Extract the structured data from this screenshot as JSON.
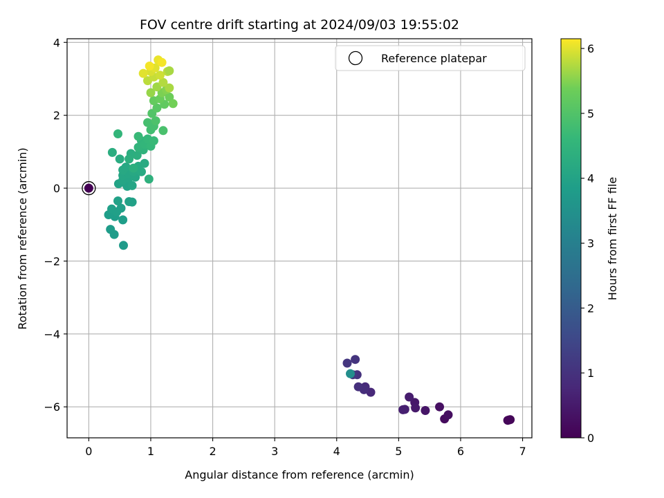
{
  "chart_data": {
    "type": "scatter",
    "title": "FOV centre drift starting at 2024/09/03 19:55:02",
    "xlabel": "Angular distance from reference (arcmin)",
    "ylabel": "Rotation from reference (arcmin)",
    "xlim": [
      -0.35,
      7.15
    ],
    "ylim": [
      -6.85,
      4.1
    ],
    "xticks": [
      0,
      1,
      2,
      3,
      4,
      5,
      6,
      7
    ],
    "yticks": [
      -6,
      -4,
      -2,
      0,
      2,
      4
    ],
    "xtick_labels": [
      "0",
      "1",
      "2",
      "3",
      "4",
      "5",
      "6",
      "7"
    ],
    "ytick_labels": [
      "−6",
      "−4",
      "−2",
      "0",
      "2",
      "4"
    ],
    "grid": true,
    "legend": {
      "placement": "top-right",
      "entries": [
        "Reference platepar"
      ]
    },
    "colorbar": {
      "label": "Hours from first FF file",
      "range": [
        0,
        6.15
      ],
      "colormap": "viridis",
      "ticks": [
        0,
        1,
        2,
        3,
        4,
        5,
        6
      ],
      "tick_labels": [
        "0",
        "1",
        "2",
        "3",
        "4",
        "5",
        "6"
      ]
    },
    "reference_point": {
      "x": 0,
      "y": 0,
      "hours": 0
    },
    "points": [
      [
        6.8,
        -6.35,
        0.05
      ],
      [
        6.76,
        -6.37,
        0.08
      ],
      [
        6.78,
        -6.36,
        0.1
      ],
      [
        5.74,
        -6.33,
        0.2
      ],
      [
        5.8,
        -6.22,
        0.25
      ],
      [
        5.66,
        -6.0,
        0.3
      ],
      [
        5.43,
        -6.1,
        0.4
      ],
      [
        5.26,
        -5.88,
        0.45
      ],
      [
        5.27,
        -6.03,
        0.5
      ],
      [
        5.17,
        -5.73,
        0.55
      ],
      [
        5.1,
        -6.07,
        0.6
      ],
      [
        5.07,
        -6.08,
        0.62
      ],
      [
        4.55,
        -5.6,
        0.8
      ],
      [
        4.46,
        -5.45,
        0.85
      ],
      [
        4.44,
        -5.53,
        0.9
      ],
      [
        4.35,
        -5.45,
        0.95
      ],
      [
        4.33,
        -5.12,
        1.0
      ],
      [
        4.3,
        -4.7,
        1.05
      ],
      [
        4.17,
        -4.8,
        1.1
      ],
      [
        4.26,
        -5.12,
        1.15
      ],
      [
        4.22,
        -5.09,
        3.4
      ],
      [
        0.56,
        -1.57,
        3.75
      ],
      [
        0.41,
        -1.27,
        3.8
      ],
      [
        0.35,
        -1.13,
        3.8
      ],
      [
        0.55,
        -0.87,
        3.85
      ],
      [
        0.42,
        -0.78,
        3.85
      ],
      [
        0.32,
        -0.73,
        3.85
      ],
      [
        0.52,
        -0.55,
        3.9
      ],
      [
        0.37,
        -0.57,
        3.9
      ],
      [
        0.45,
        -0.65,
        3.9
      ],
      [
        0.47,
        -0.35,
        3.95
      ],
      [
        0.65,
        -0.37,
        3.95
      ],
      [
        0.7,
        -0.38,
        3.95
      ],
      [
        0.48,
        0.12,
        4.0
      ],
      [
        0.6,
        0.12,
        4.0
      ],
      [
        0.62,
        0.05,
        4.0
      ],
      [
        0.7,
        0.07,
        4.05
      ],
      [
        0.55,
        0.22,
        4.05
      ],
      [
        0.65,
        0.28,
        4.05
      ],
      [
        0.75,
        0.3,
        4.1
      ],
      [
        0.55,
        0.35,
        4.1
      ],
      [
        0.65,
        0.4,
        4.1
      ],
      [
        0.72,
        0.45,
        4.15
      ],
      [
        0.55,
        0.5,
        4.15
      ],
      [
        0.6,
        0.58,
        4.15
      ],
      [
        0.85,
        0.45,
        4.2
      ],
      [
        0.8,
        0.6,
        4.2
      ],
      [
        0.9,
        0.68,
        4.2
      ],
      [
        0.5,
        0.8,
        4.25
      ],
      [
        0.38,
        0.98,
        4.3
      ],
      [
        0.68,
        0.95,
        4.3
      ],
      [
        0.78,
        0.9,
        4.35
      ],
      [
        0.65,
        0.8,
        4.35
      ],
      [
        0.72,
        0.55,
        4.35
      ],
      [
        0.97,
        0.25,
        4.4
      ],
      [
        0.88,
        1.05,
        4.45
      ],
      [
        0.8,
        1.12,
        4.5
      ],
      [
        0.85,
        1.3,
        4.5
      ],
      [
        0.9,
        1.2,
        4.55
      ],
      [
        1.0,
        1.15,
        4.6
      ],
      [
        0.95,
        1.35,
        4.6
      ],
      [
        1.05,
        1.3,
        4.65
      ],
      [
        0.8,
        1.42,
        4.65
      ],
      [
        0.47,
        1.49,
        4.55
      ],
      [
        1.0,
        1.6,
        4.8
      ],
      [
        1.05,
        1.7,
        4.85
      ],
      [
        0.95,
        1.8,
        4.85
      ],
      [
        1.2,
        1.58,
        4.9
      ],
      [
        1.08,
        1.85,
        4.95
      ],
      [
        1.02,
        2.05,
        5.0
      ],
      [
        1.1,
        2.2,
        5.1
      ],
      [
        1.22,
        2.3,
        5.2
      ],
      [
        1.05,
        2.4,
        5.25
      ],
      [
        1.15,
        2.45,
        5.3
      ],
      [
        1.3,
        2.5,
        5.35
      ],
      [
        1.36,
        2.32,
        5.4
      ],
      [
        1.18,
        2.62,
        5.45
      ],
      [
        1.25,
        2.7,
        5.5
      ],
      [
        1.0,
        2.62,
        5.6
      ],
      [
        1.1,
        2.78,
        5.65
      ],
      [
        1.3,
        2.75,
        5.7
      ],
      [
        1.2,
        2.9,
        5.75
      ],
      [
        0.95,
        2.95,
        5.8
      ],
      [
        1.05,
        3.05,
        5.85
      ],
      [
        1.15,
        3.1,
        5.9
      ],
      [
        1.0,
        3.2,
        5.95
      ],
      [
        0.88,
        3.15,
        6.0
      ],
      [
        1.07,
        3.3,
        6.0
      ],
      [
        1.12,
        3.52,
        6.05
      ],
      [
        1.18,
        3.45,
        6.1
      ],
      [
        0.98,
        3.35,
        6.1
      ],
      [
        1.27,
        3.2,
        5.8
      ],
      [
        1.3,
        3.22,
        5.7
      ]
    ]
  }
}
